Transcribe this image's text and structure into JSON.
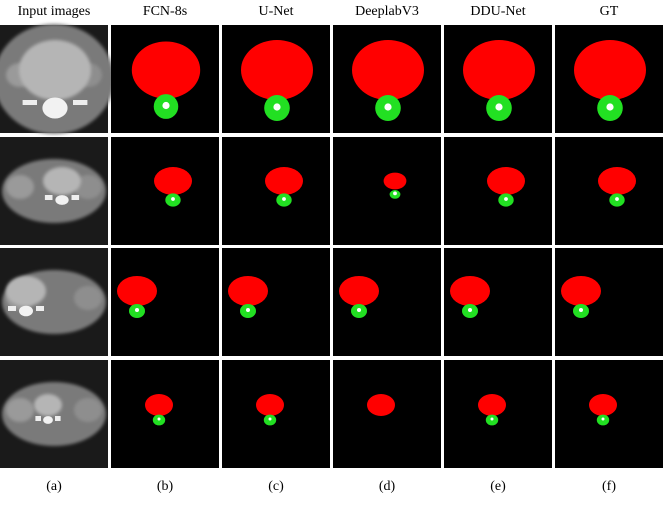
{
  "figure": {
    "columns": [
      {
        "header": "Input images",
        "label": "(a)"
      },
      {
        "header": "FCN-8s",
        "label": "(b)"
      },
      {
        "header": "U-Net",
        "label": "(c)"
      },
      {
        "header": "DeeplabV3",
        "label": "(d)"
      },
      {
        "header": "DDU-Net",
        "label": "(e)"
      },
      {
        "header": "GT",
        "label": "(f)"
      }
    ]
  }
}
